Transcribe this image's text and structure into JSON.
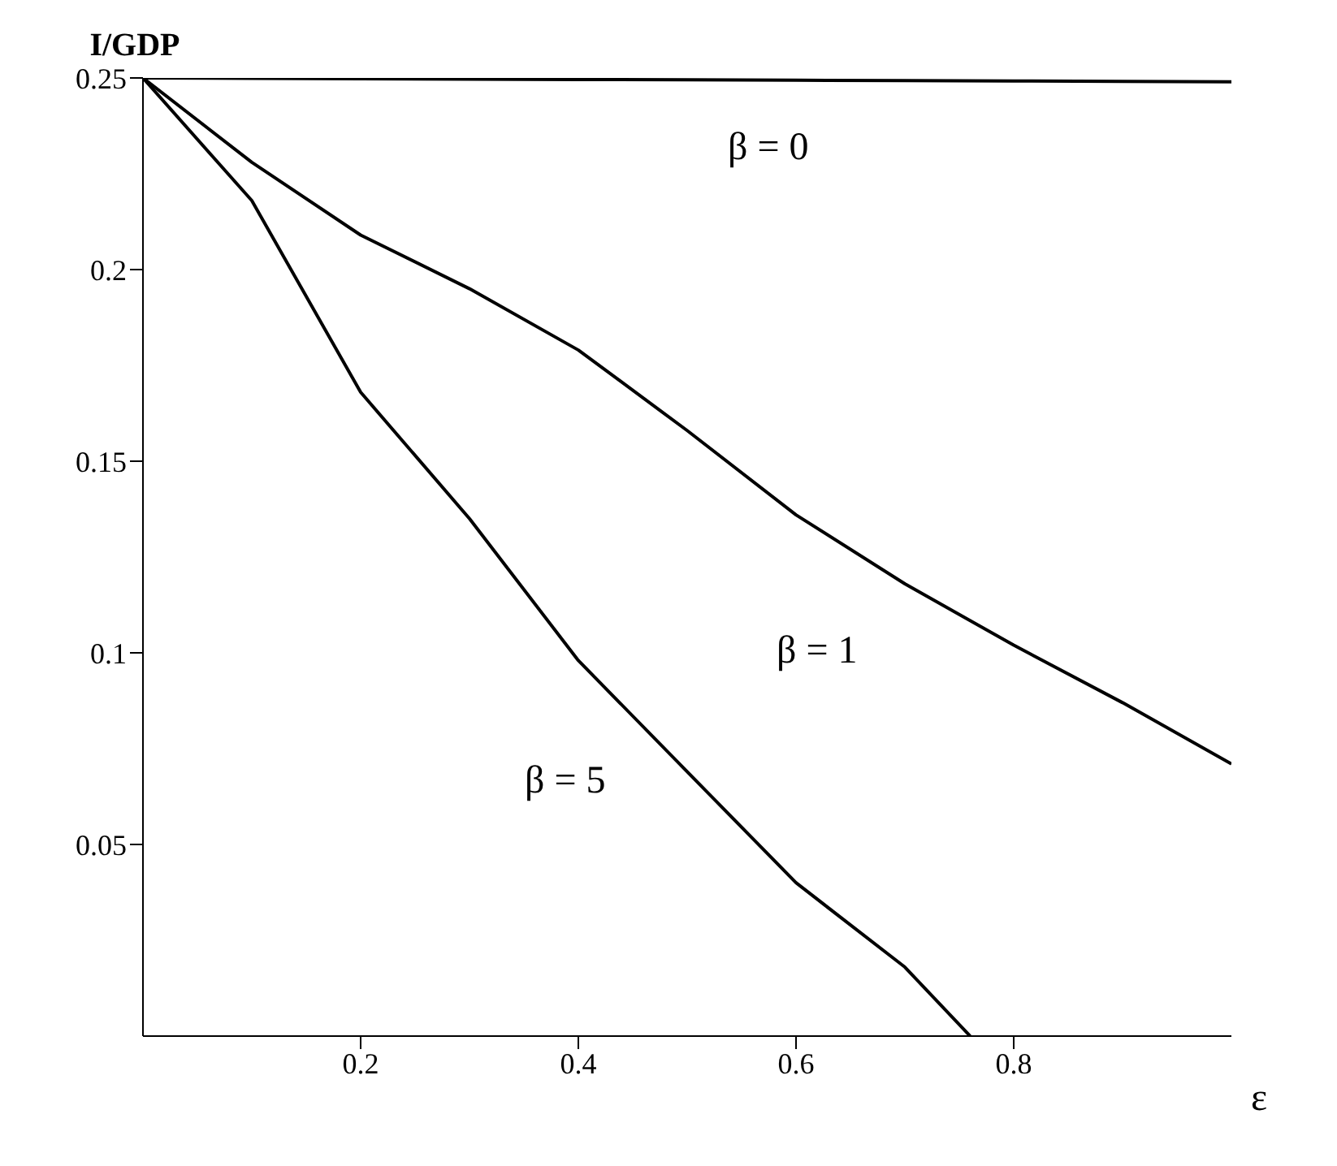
{
  "chart_data": {
    "type": "line",
    "xlabel": "ε",
    "ylabel": "I/GDP",
    "x": [
      0,
      0.1,
      0.2,
      0.3,
      0.4,
      0.5,
      0.6,
      0.7,
      0.8,
      0.9,
      1.0
    ],
    "series": [
      {
        "color": "#000000",
        "values": [
          0.25,
          0.2499,
          0.2498,
          0.2497,
          0.2496,
          0.2495,
          0.2494,
          0.2493,
          0.2492,
          0.2491,
          0.249
        ]
      },
      {
        "color": "#000000",
        "values": [
          0.25,
          0.228,
          0.209,
          0.195,
          0.179,
          0.158,
          0.136,
          0.118,
          0.102,
          0.087,
          0.071
        ]
      },
      {
        "color": "#000000",
        "x": [
          0,
          0.1,
          0.2,
          0.3,
          0.4,
          0.5,
          0.6,
          0.7,
          0.76
        ],
        "values": [
          0.25,
          0.218,
          0.168,
          0.135,
          0.098,
          0.069,
          0.04,
          0.018,
          0
        ]
      }
    ],
    "annotations": [
      "β = 0",
      "β = 1",
      "β = 5"
    ],
    "xlim": [
      0,
      1
    ],
    "ylim": [
      0,
      0.25
    ],
    "xticks": [
      0.2,
      0.4,
      0.6,
      0.8
    ],
    "yticks": [
      0.05,
      0.1,
      0.15,
      0.2,
      0.25
    ],
    "grid": false,
    "legend": false,
    "marker": "none",
    "line_style": "solid"
  }
}
